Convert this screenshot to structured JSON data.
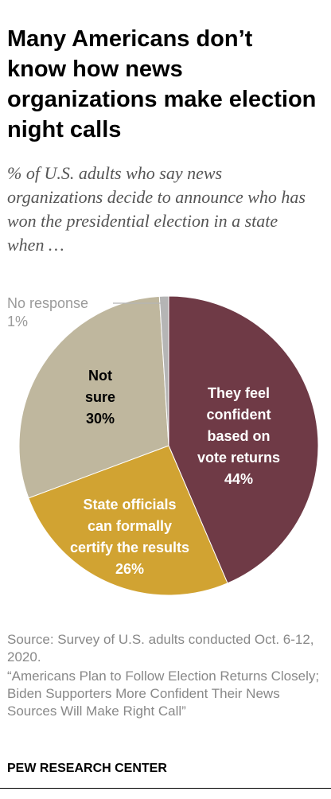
{
  "title": "Many Americans don’t know how news organizations make election night calls",
  "subtitle": "% of U.S. adults who say news organizations decide to announce who has won the presidential election in a state when …",
  "chart_data": {
    "type": "pie",
    "slices": [
      {
        "label_lines": [
          "They feel",
          "confident",
          "based on",
          "vote returns"
        ],
        "pct_label": "44%",
        "value": 44,
        "color": "#6f3a46",
        "label_color": "#ffffff"
      },
      {
        "label_lines": [
          "State officials",
          "can formally",
          "certify the results"
        ],
        "pct_label": "26%",
        "value": 26,
        "color": "#d1a332",
        "label_color": "#ffffff"
      },
      {
        "label_lines": [
          "Not",
          "sure"
        ],
        "pct_label": "30%",
        "value": 30,
        "color": "#bfb79e",
        "label_color": "#000000"
      },
      {
        "label_lines": [
          "No response"
        ],
        "pct_label": "1%",
        "value": 1,
        "color": "#b5b5b5",
        "label_color": "#9a9a9a",
        "outside_label": true
      }
    ],
    "start_angle": "12 o'clock",
    "direction": "clockwise"
  },
  "source": "Source: Survey of U.S. adults conducted Oct. 6-12, 2020.",
  "report_title": "“Americans Plan to Follow Election Returns Closely; Biden Supporters More Confident Their News Sources Will Make Right Call”",
  "brand": "PEW RESEARCH CENTER"
}
